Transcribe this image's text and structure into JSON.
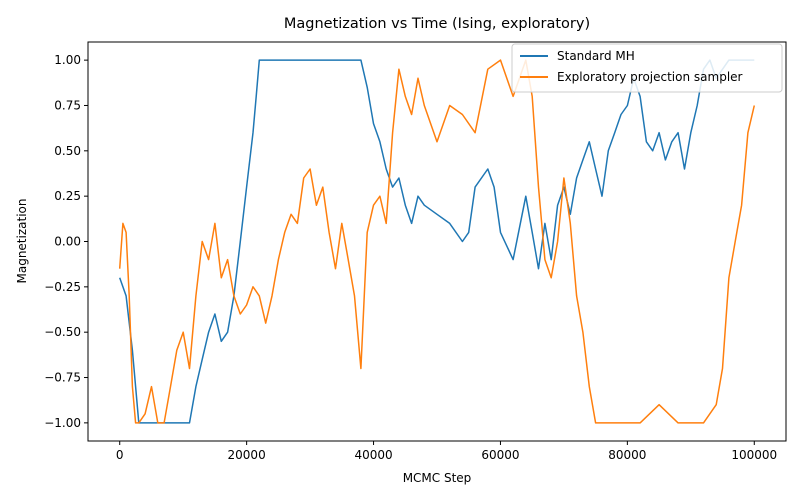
{
  "chart_data": {
    "type": "line",
    "title": "Magnetization vs Time (Ising, exploratory)",
    "xlabel": "MCMC Step",
    "ylabel": "Magnetization",
    "xlim": [
      -5000,
      105000
    ],
    "ylim": [
      -1.1,
      1.1
    ],
    "x_ticks": [
      0,
      20000,
      40000,
      60000,
      80000,
      100000
    ],
    "y_ticks": [
      -1.0,
      -0.75,
      -0.5,
      -0.25,
      0.0,
      0.25,
      0.5,
      0.75,
      1.0
    ],
    "x_tick_labels": [
      "0",
      "20000",
      "40000",
      "60000",
      "80000",
      "100000"
    ],
    "y_tick_labels": [
      "−1.00",
      "−0.75",
      "−0.50",
      "−0.25",
      "0.00",
      "0.25",
      "0.50",
      "0.75",
      "1.00"
    ],
    "legend_position": "top-right",
    "series": [
      {
        "name": "Standard MH",
        "color": "#1f77b4",
        "x": [
          0,
          1000,
          2000,
          2500,
          3000,
          5000,
          8000,
          11000,
          12000,
          13000,
          14000,
          15000,
          16000,
          17000,
          18000,
          19000,
          20000,
          21000,
          21500,
          22000,
          25000,
          30000,
          35000,
          38000,
          39000,
          40000,
          41000,
          42000,
          43000,
          44000,
          45000,
          46000,
          47000,
          48000,
          50000,
          52000,
          54000,
          55000,
          56000,
          58000,
          59000,
          60000,
          62000,
          64000,
          65000,
          66000,
          67000,
          68000,
          69000,
          70000,
          71000,
          72000,
          73000,
          74000,
          75000,
          76000,
          77000,
          78000,
          79000,
          80000,
          81000,
          82000,
          83000,
          84000,
          85000,
          86000,
          87000,
          88000,
          89000,
          90000,
          91000,
          92000,
          93000,
          94000,
          96000,
          98000,
          100000
        ],
        "y": [
          -0.2,
          -0.3,
          -0.6,
          -0.8,
          -1.0,
          -1.0,
          -1.0,
          -1.0,
          -0.8,
          -0.65,
          -0.5,
          -0.4,
          -0.55,
          -0.5,
          -0.3,
          0.0,
          0.3,
          0.6,
          0.8,
          1.0,
          1.0,
          1.0,
          1.0,
          1.0,
          0.85,
          0.65,
          0.55,
          0.4,
          0.3,
          0.35,
          0.2,
          0.1,
          0.25,
          0.2,
          0.15,
          0.1,
          0.0,
          0.05,
          0.3,
          0.4,
          0.3,
          0.05,
          -0.1,
          0.25,
          0.05,
          -0.15,
          0.1,
          -0.1,
          0.2,
          0.3,
          0.15,
          0.35,
          0.45,
          0.55,
          0.4,
          0.25,
          0.5,
          0.6,
          0.7,
          0.75,
          0.9,
          0.8,
          0.55,
          0.5,
          0.6,
          0.45,
          0.55,
          0.6,
          0.4,
          0.6,
          0.75,
          0.95,
          1.0,
          0.9,
          1.0,
          1.0,
          1.0
        ]
      },
      {
        "name": "Exploratory projection sampler",
        "color": "#ff7f0e",
        "x": [
          0,
          500,
          1000,
          1500,
          2000,
          2500,
          3000,
          4000,
          5000,
          6000,
          7000,
          8000,
          9000,
          10000,
          11000,
          12000,
          13000,
          14000,
          15000,
          16000,
          17000,
          18000,
          19000,
          20000,
          21000,
          22000,
          23000,
          24000,
          25000,
          26000,
          27000,
          28000,
          29000,
          30000,
          31000,
          32000,
          33000,
          34000,
          35000,
          36000,
          37000,
          38000,
          39000,
          40000,
          41000,
          42000,
          43000,
          44000,
          45000,
          46000,
          47000,
          48000,
          50000,
          52000,
          54000,
          56000,
          58000,
          60000,
          62000,
          64000,
          65000,
          66000,
          67000,
          68000,
          69000,
          70000,
          71000,
          72000,
          73000,
          74000,
          75000,
          78000,
          82000,
          85000,
          88000,
          92000,
          94000,
          95000,
          96000,
          97000,
          98000,
          99000,
          100000
        ],
        "y": [
          -0.15,
          0.1,
          0.05,
          -0.3,
          -0.8,
          -1.0,
          -1.0,
          -0.95,
          -0.8,
          -1.0,
          -1.0,
          -0.8,
          -0.6,
          -0.5,
          -0.7,
          -0.3,
          0.0,
          -0.1,
          0.1,
          -0.2,
          -0.1,
          -0.3,
          -0.4,
          -0.35,
          -0.25,
          -0.3,
          -0.45,
          -0.3,
          -0.1,
          0.05,
          0.15,
          0.1,
          0.35,
          0.4,
          0.2,
          0.3,
          0.05,
          -0.15,
          0.1,
          -0.1,
          -0.3,
          -0.7,
          0.05,
          0.2,
          0.25,
          0.1,
          0.6,
          0.95,
          0.8,
          0.7,
          0.9,
          0.75,
          0.55,
          0.75,
          0.7,
          0.6,
          0.95,
          1.0,
          0.8,
          1.0,
          0.8,
          0.3,
          -0.1,
          -0.2,
          0.0,
          0.35,
          0.1,
          -0.3,
          -0.5,
          -0.8,
          -1.0,
          -1.0,
          -1.0,
          -0.9,
          -1.0,
          -1.0,
          -0.9,
          -0.7,
          -0.2,
          0.0,
          0.2,
          0.6,
          0.75
        ]
      }
    ]
  }
}
